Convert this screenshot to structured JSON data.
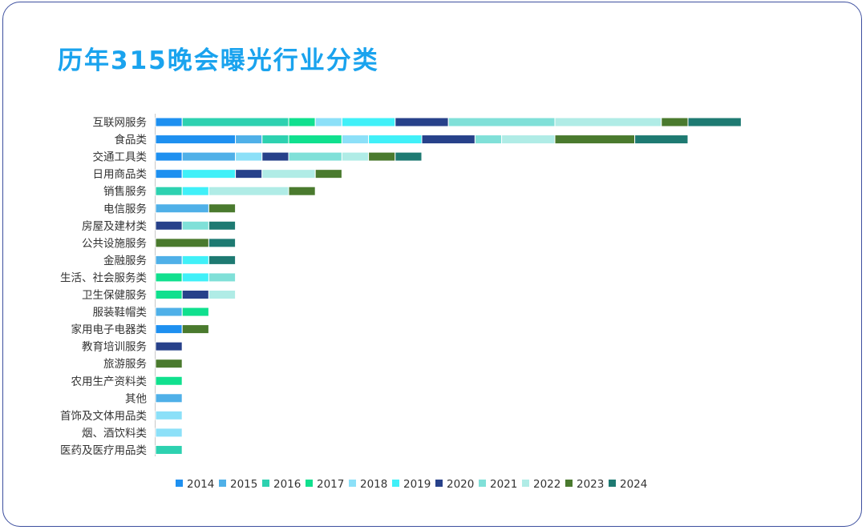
{
  "chart_data": {
    "type": "bar",
    "orientation": "horizontal",
    "stacked": true,
    "title": "历年315晚会曝光行业分类",
    "categories": [
      "互联网服务",
      "食品类",
      "交通工具类",
      "日用商品类",
      "销售服务",
      "电信服务",
      "房屋及建材类",
      "公共设施服务",
      "金融服务",
      "生活、社会服务类",
      "卫生保健服务",
      "服装鞋帽类",
      "家用电子电器类",
      "教育培训服务",
      "旅游服务",
      "农用生产资料类",
      "其他",
      "首饰及文体用品类",
      "烟、酒饮料类",
      "医药及医疗用品类"
    ],
    "series": [
      {
        "name": "2014",
        "color": "#1e90f0",
        "values": [
          1,
          3,
          1,
          1,
          0,
          0,
          0,
          0,
          0,
          0,
          0,
          0,
          1,
          0,
          0,
          0,
          0,
          0,
          0,
          0
        ]
      },
      {
        "name": "2015",
        "color": "#4fb0e8",
        "values": [
          0,
          1,
          2,
          0,
          0,
          2,
          0,
          0,
          1,
          0,
          0,
          1,
          0,
          0,
          0,
          0,
          1,
          0,
          0,
          0
        ]
      },
      {
        "name": "2016",
        "color": "#2dd1b0",
        "values": [
          4,
          1,
          0,
          0,
          1,
          0,
          0,
          0,
          0,
          0,
          0,
          0,
          0,
          0,
          0,
          0,
          0,
          0,
          0,
          1
        ]
      },
      {
        "name": "2017",
        "color": "#10e08e",
        "values": [
          1,
          2,
          0,
          0,
          0,
          0,
          0,
          0,
          0,
          1,
          1,
          1,
          0,
          0,
          0,
          1,
          0,
          0,
          0,
          0
        ]
      },
      {
        "name": "2018",
        "color": "#8ce0f8",
        "values": [
          1,
          1,
          1,
          0,
          0,
          0,
          0,
          0,
          0,
          0,
          0,
          0,
          0,
          0,
          0,
          0,
          0,
          1,
          1,
          0
        ]
      },
      {
        "name": "2019",
        "color": "#40f0f8",
        "values": [
          2,
          2,
          0,
          2,
          1,
          0,
          0,
          0,
          1,
          1,
          0,
          0,
          0,
          0,
          0,
          0,
          0,
          0,
          0,
          0
        ]
      },
      {
        "name": "2020",
        "color": "#27418a",
        "values": [
          2,
          2,
          1,
          1,
          0,
          0,
          1,
          0,
          0,
          0,
          1,
          0,
          0,
          1,
          0,
          0,
          0,
          0,
          0,
          0
        ]
      },
      {
        "name": "2021",
        "color": "#80e0d8",
        "values": [
          4,
          1,
          2,
          0,
          0,
          0,
          1,
          0,
          0,
          1,
          0,
          0,
          0,
          0,
          0,
          0,
          0,
          0,
          0,
          0
        ]
      },
      {
        "name": "2022",
        "color": "#b0ece6",
        "values": [
          4,
          2,
          1,
          2,
          3,
          0,
          0,
          0,
          0,
          0,
          1,
          0,
          0,
          0,
          0,
          0,
          0,
          0,
          0,
          0
        ]
      },
      {
        "name": "2023",
        "color": "#4a7a2e",
        "values": [
          1,
          3,
          1,
          1,
          1,
          1,
          0,
          2,
          0,
          0,
          0,
          0,
          1,
          0,
          1,
          0,
          0,
          0,
          0,
          0
        ]
      },
      {
        "name": "2024",
        "color": "#1e7a72",
        "values": [
          2,
          2,
          1,
          0,
          0,
          0,
          1,
          1,
          1,
          0,
          0,
          0,
          0,
          0,
          0,
          0,
          0,
          0,
          0,
          0
        ]
      }
    ],
    "xlim": [
      0,
      24
    ],
    "grid": false,
    "legend_position": "bottom"
  }
}
